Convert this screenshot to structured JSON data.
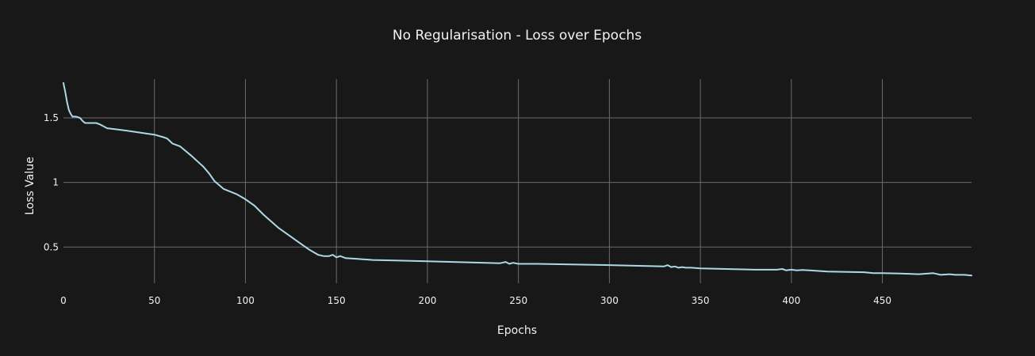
{
  "chart_data": {
    "type": "line",
    "title": "No Regularisation - Loss over Epochs",
    "xlabel": "Epochs",
    "ylabel": "Loss Value",
    "xlim": [
      0,
      499
    ],
    "ylim": [
      0.22,
      1.8
    ],
    "x_ticks": [
      0,
      50,
      100,
      150,
      200,
      250,
      300,
      350,
      400,
      450
    ],
    "y_ticks": [
      0.5,
      1,
      1.5
    ],
    "grid": true,
    "colors": {
      "background": "#181818",
      "grid": "#6b6b6b",
      "line": "#add8e6",
      "text": "#f2f2f2"
    },
    "series": [
      {
        "points": [
          [
            0,
            1.77
          ],
          [
            1,
            1.7
          ],
          [
            2,
            1.62
          ],
          [
            3,
            1.56
          ],
          [
            4,
            1.53
          ],
          [
            5,
            1.51
          ],
          [
            7,
            1.51
          ],
          [
            9,
            1.5
          ],
          [
            11,
            1.47
          ],
          [
            12,
            1.46
          ],
          [
            18,
            1.46
          ],
          [
            20,
            1.45
          ],
          [
            24,
            1.42
          ],
          [
            30,
            1.41
          ],
          [
            35,
            1.4
          ],
          [
            45,
            1.38
          ],
          [
            50,
            1.37
          ],
          [
            55,
            1.35
          ],
          [
            57,
            1.34
          ],
          [
            60,
            1.3
          ],
          [
            64,
            1.28
          ],
          [
            70,
            1.21
          ],
          [
            77,
            1.12
          ],
          [
            80,
            1.07
          ],
          [
            83,
            1.01
          ],
          [
            88,
            0.95
          ],
          [
            95,
            0.91
          ],
          [
            100,
            0.87
          ],
          [
            105,
            0.82
          ],
          [
            110,
            0.75
          ],
          [
            118,
            0.65
          ],
          [
            125,
            0.58
          ],
          [
            130,
            0.53
          ],
          [
            135,
            0.48
          ],
          [
            140,
            0.44
          ],
          [
            143,
            0.43
          ],
          [
            146,
            0.43
          ],
          [
            148,
            0.44
          ],
          [
            150,
            0.42
          ],
          [
            152,
            0.43
          ],
          [
            155,
            0.415
          ],
          [
            160,
            0.41
          ],
          [
            170,
            0.4
          ],
          [
            200,
            0.39
          ],
          [
            240,
            0.375
          ],
          [
            243,
            0.385
          ],
          [
            245,
            0.37
          ],
          [
            247,
            0.378
          ],
          [
            250,
            0.37
          ],
          [
            260,
            0.37
          ],
          [
            300,
            0.36
          ],
          [
            330,
            0.35
          ],
          [
            332,
            0.36
          ],
          [
            334,
            0.345
          ],
          [
            336,
            0.35
          ],
          [
            338,
            0.34
          ],
          [
            340,
            0.345
          ],
          [
            342,
            0.34
          ],
          [
            345,
            0.34
          ],
          [
            350,
            0.335
          ],
          [
            380,
            0.325
          ],
          [
            392,
            0.325
          ],
          [
            395,
            0.33
          ],
          [
            397,
            0.32
          ],
          [
            400,
            0.325
          ],
          [
            403,
            0.32
          ],
          [
            406,
            0.322
          ],
          [
            410,
            0.32
          ],
          [
            420,
            0.31
          ],
          [
            440,
            0.305
          ],
          [
            445,
            0.298
          ],
          [
            450,
            0.298
          ],
          [
            460,
            0.295
          ],
          [
            470,
            0.29
          ],
          [
            475,
            0.295
          ],
          [
            478,
            0.298
          ],
          [
            482,
            0.285
          ],
          [
            487,
            0.29
          ],
          [
            490,
            0.285
          ],
          [
            495,
            0.285
          ],
          [
            499,
            0.28
          ]
        ]
      }
    ]
  }
}
